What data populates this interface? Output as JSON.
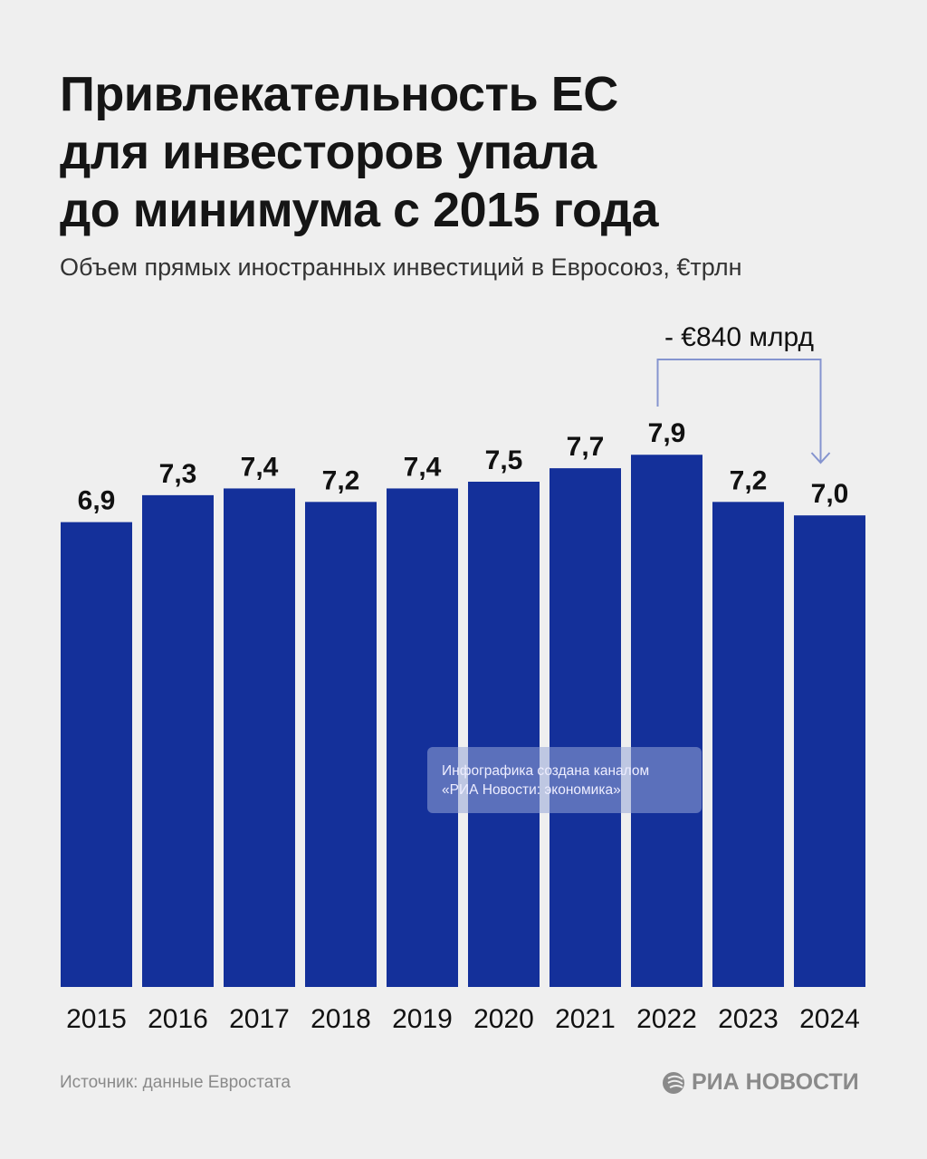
{
  "title_lines": [
    "Привлекательность ЕС",
    "для инвесторов упала",
    "до минимума с 2015 года"
  ],
  "subtitle": "Объем прямых иностранных инвестиций в Евросоюз, €трлн",
  "source": "Источник: данные Евростата",
  "logo_text": "РИА НОВОСТИ",
  "watermark_lines": [
    "Инфографика создана каналом",
    "«РИА Новости: экономика»"
  ],
  "colors": {
    "bar": "#14309a",
    "annotation": "#8594cf",
    "background": "#efefef"
  },
  "chart_data": {
    "type": "bar",
    "categories": [
      "2015",
      "2016",
      "2017",
      "2018",
      "2019",
      "2020",
      "2021",
      "2022",
      "2023",
      "2024"
    ],
    "values": [
      6.9,
      7.3,
      7.4,
      7.2,
      7.4,
      7.5,
      7.7,
      7.9,
      7.2,
      7.0
    ],
    "value_labels": [
      "6,9",
      "7,3",
      "7,4",
      "7,2",
      "7,4",
      "7,5",
      "7,7",
      "7,9",
      "7,2",
      "7,0"
    ],
    "ylim": [
      0,
      8
    ],
    "grid": false,
    "annotation": {
      "text": "- €840 млрд",
      "from": "2022",
      "to": "2024"
    }
  }
}
